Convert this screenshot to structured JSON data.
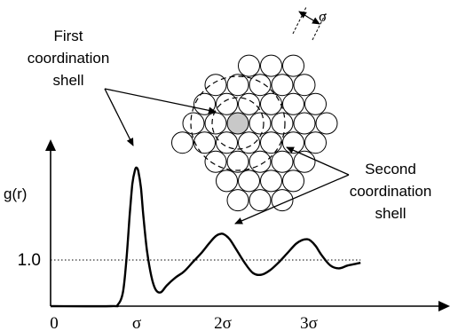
{
  "chart_data": {
    "type": "line",
    "ylabel": "g(r)",
    "xlabel": "",
    "x_ticks": [
      {
        "value": 0,
        "label": "0"
      },
      {
        "value": 1,
        "label": "σ"
      },
      {
        "value": 2,
        "label": "2σ"
      },
      {
        "value": 3,
        "label": "3σ"
      }
    ],
    "y_ticks": [
      {
        "value": 1.0,
        "label": "1.0"
      }
    ],
    "reference_line": {
      "y": 1.0,
      "style": "dotted"
    },
    "xlim": [
      0,
      3.6
    ],
    "ylim": [
      0,
      3.2
    ],
    "series": [
      {
        "x": [
          0,
          0.7,
          0.78,
          0.84,
          0.88,
          0.92,
          0.95,
          0.98,
          1.0,
          1.02,
          1.05,
          1.08,
          1.12,
          1.17,
          1.22,
          1.28,
          1.35,
          1.45,
          1.55,
          1.65,
          1.75,
          1.85,
          1.92,
          1.98,
          2.02,
          2.08,
          2.15,
          2.25,
          2.35,
          2.45,
          2.55,
          2.65,
          2.75,
          2.85,
          2.92,
          2.98,
          3.02,
          3.08,
          3.15,
          3.25,
          3.35,
          3.45,
          3.55,
          3.6
        ],
        "y": [
          0,
          0,
          0.03,
          0.3,
          1.0,
          2.0,
          2.65,
          2.95,
          3.0,
          2.92,
          2.55,
          1.9,
          1.2,
          0.65,
          0.36,
          0.3,
          0.45,
          0.62,
          0.75,
          0.95,
          1.15,
          1.38,
          1.52,
          1.57,
          1.55,
          1.45,
          1.25,
          0.95,
          0.72,
          0.68,
          0.78,
          0.95,
          1.15,
          1.35,
          1.43,
          1.45,
          1.42,
          1.3,
          1.1,
          0.88,
          0.82,
          0.88,
          0.92,
          0.94
        ]
      }
    ],
    "annotations": [
      {
        "text_lines": [
          "First",
          "coordination",
          "shell"
        ]
      },
      {
        "text_lines": [
          "Second",
          "coordination",
          "shell"
        ]
      }
    ],
    "inset": {
      "description_label": "σ",
      "type": "particle-packing"
    }
  }
}
